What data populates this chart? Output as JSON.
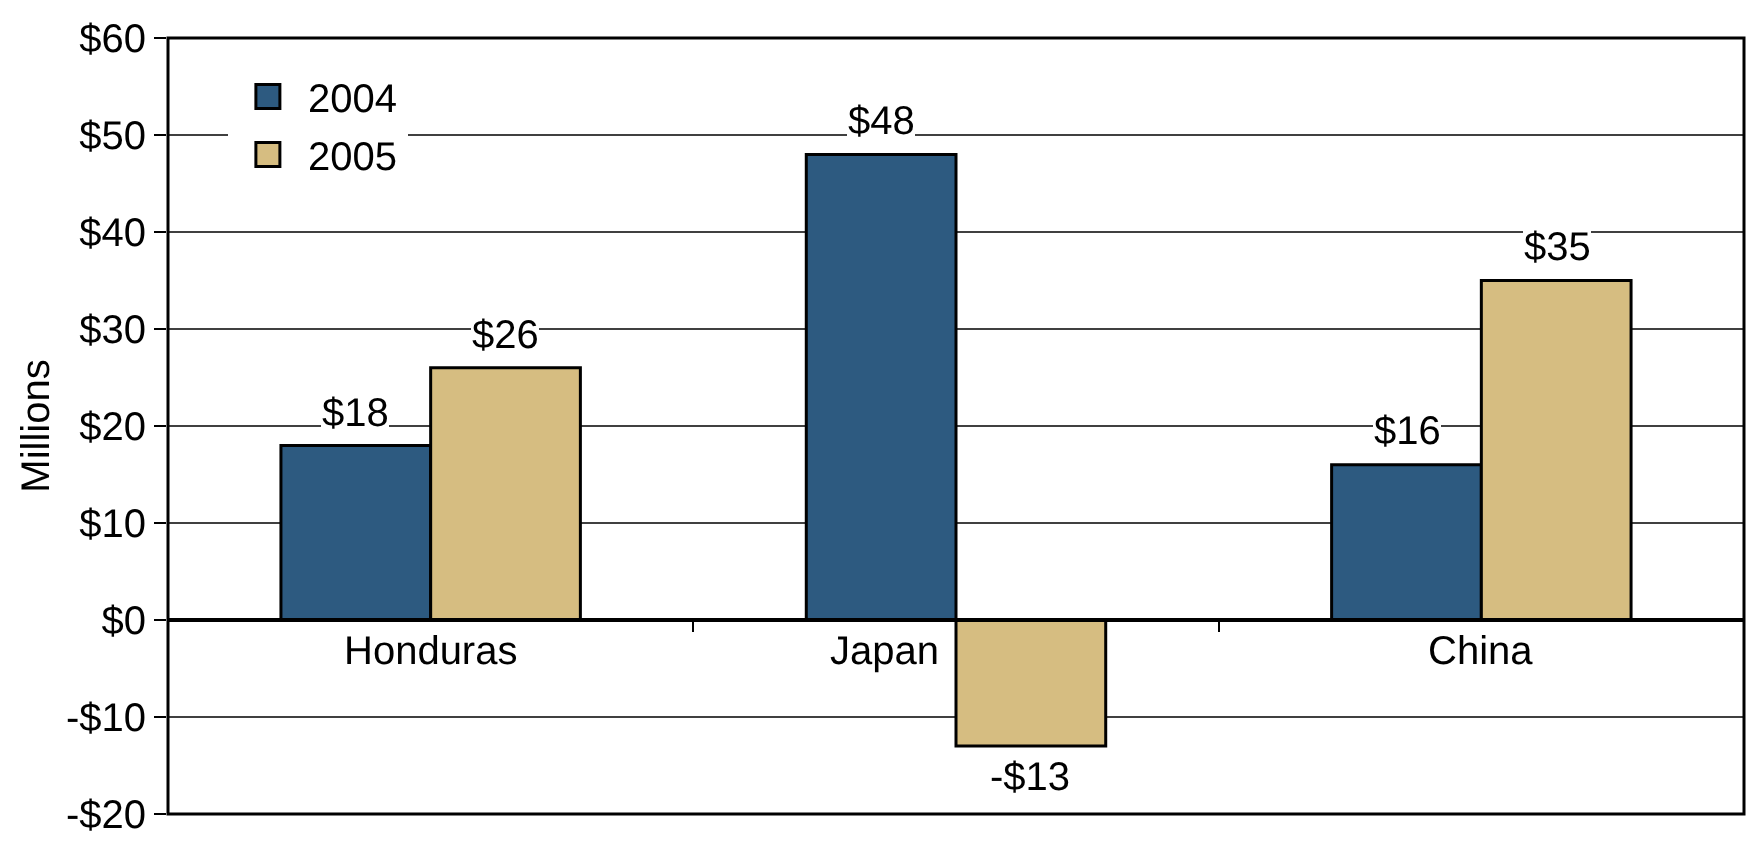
{
  "chart_data": {
    "type": "bar",
    "ylabel": "Millions",
    "categories": [
      "Honduras",
      "Japan",
      "China"
    ],
    "series": [
      {
        "name": "2004",
        "color": "#2d5a80",
        "values": [
          18,
          48,
          16
        ],
        "value_labels": [
          "$18",
          "$48",
          "$16"
        ]
      },
      {
        "name": "2005",
        "color": "#d6bd81",
        "values": [
          26,
          -13,
          35
        ],
        "value_labels": [
          "$26",
          "-$13",
          "$35"
        ]
      }
    ],
    "ylim": [
      -20,
      60
    ],
    "yticks": [
      {
        "value": -20,
        "label": "-$20"
      },
      {
        "value": -10,
        "label": "-$10"
      },
      {
        "value": 0,
        "label": "$0"
      },
      {
        "value": 10,
        "label": "$10"
      },
      {
        "value": 20,
        "label": "$20"
      },
      {
        "value": 30,
        "label": "$30"
      },
      {
        "value": 40,
        "label": "$40"
      },
      {
        "value": 50,
        "label": "$50"
      },
      {
        "value": 60,
        "label": "$60"
      }
    ],
    "grid": "y",
    "legend": "top left"
  }
}
